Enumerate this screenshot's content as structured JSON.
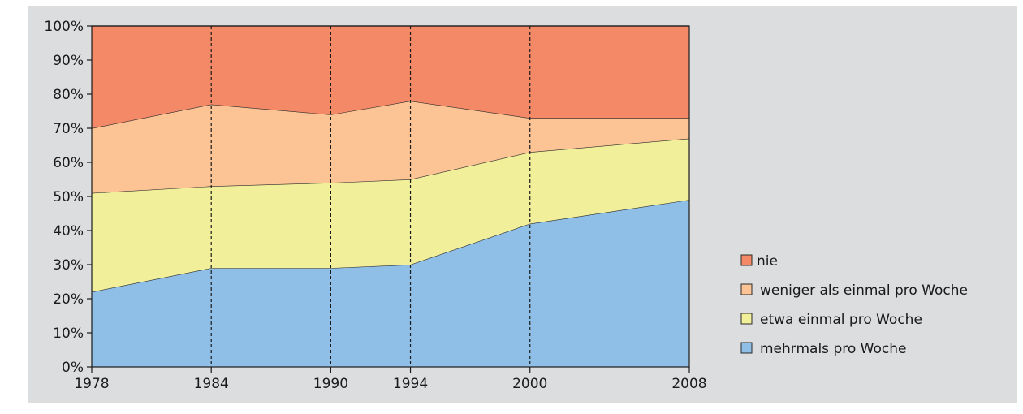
{
  "chart_data": {
    "type": "area",
    "stacked": true,
    "x": [
      "1978",
      "1984",
      "1990",
      "1994",
      "2000",
      "2008"
    ],
    "x_values": [
      1978,
      1984,
      1990,
      1994,
      2000,
      2008
    ],
    "ylim": [
      0,
      100
    ],
    "y_ticks": [
      "0%",
      "10%",
      "20%",
      "30%",
      "40%",
      "50%",
      "60%",
      "70%",
      "80%",
      "90%",
      "100%"
    ],
    "grid": "vertical dashed lines at 1984, 1990, 1994, 2000",
    "legend_position": "right",
    "series": [
      {
        "name": "mehrmals pro Woche",
        "color": "#8fbee6",
        "values": [
          22,
          29,
          29,
          30,
          42,
          49
        ]
      },
      {
        "name": "etwa einmal pro Woche",
        "color": "#f2ef9b",
        "values": [
          29,
          24,
          25,
          25,
          21,
          18
        ]
      },
      {
        "name": "weniger als einmal pro Woche",
        "color": "#fcc394",
        "values": [
          19,
          24,
          20,
          23,
          10,
          6
        ]
      },
      {
        "name": "nie",
        "color": "#f48967",
        "values": [
          30,
          23,
          26,
          22,
          27,
          27
        ]
      }
    ]
  }
}
